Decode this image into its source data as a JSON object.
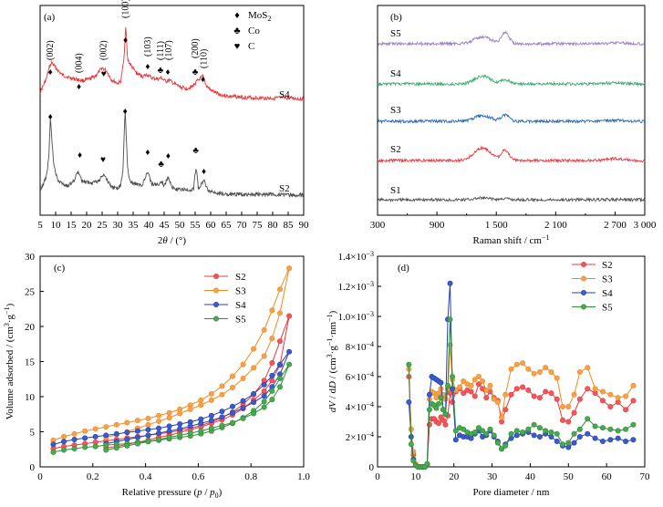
{
  "chart_data": [
    {
      "panel": "(a)",
      "type": "line",
      "xlabel": "2θ / (°)",
      "ylabel": "",
      "xlim": [
        5,
        90
      ],
      "xticks": [
        "5",
        "10",
        "15",
        "20",
        "25",
        "30",
        "35",
        "40",
        "45",
        "50",
        "55",
        "60",
        "65",
        "70",
        "75",
        "80",
        "85",
        "90"
      ],
      "series": [
        {
          "name": "S4",
          "color": "#e8383d",
          "x": [
            5,
            7,
            8,
            8.8,
            10,
            12,
            14,
            16,
            17.5,
            19,
            21,
            23,
            25,
            26.5,
            28,
            30,
            31,
            32,
            32.6,
            33.2,
            34,
            36,
            38,
            39.7,
            41,
            43,
            44.2,
            45.5,
            46.5,
            48,
            50,
            52,
            54,
            55.5,
            56.5,
            57.5,
            58.5,
            60,
            63,
            66,
            70,
            75,
            80,
            85,
            90
          ],
          "y": [
            0.18,
            0.33,
            0.47,
            0.52,
            0.46,
            0.38,
            0.35,
            0.33,
            0.32,
            0.31,
            0.33,
            0.37,
            0.46,
            0.42,
            0.32,
            0.28,
            0.3,
            0.55,
            0.95,
            0.56,
            0.5,
            0.4,
            0.36,
            0.38,
            0.34,
            0.33,
            0.34,
            0.3,
            0.32,
            0.28,
            0.24,
            0.22,
            0.24,
            0.3,
            0.33,
            0.36,
            0.26,
            0.2,
            0.15,
            0.13,
            0.12,
            0.11,
            0.11,
            0.11,
            0.1
          ]
        },
        {
          "name": "S2",
          "color": "#4d4d4d",
          "x": [
            5,
            6,
            7,
            7.8,
            8.3,
            8.8,
            9.5,
            10.5,
            12,
            14,
            16,
            17.2,
            18.5,
            20,
            22,
            24,
            25.5,
            27,
            28.5,
            30,
            31,
            31.7,
            32.4,
            33.2,
            34,
            36,
            38,
            39.7,
            41,
            42.5,
            43.5,
            44.2,
            45,
            46.3,
            47.5,
            49,
            51,
            53,
            54.5,
            55.3,
            56,
            57,
            57.8,
            59,
            61,
            63,
            66,
            70,
            75,
            80,
            85,
            90
          ],
          "y": [
            0.1,
            0.16,
            0.24,
            0.45,
            0.9,
            0.62,
            0.36,
            0.22,
            0.16,
            0.14,
            0.2,
            0.3,
            0.2,
            0.18,
            0.17,
            0.2,
            0.28,
            0.18,
            0.12,
            0.12,
            0.15,
            0.3,
            0.98,
            0.34,
            0.18,
            0.16,
            0.15,
            0.3,
            0.16,
            0.15,
            0.17,
            0.2,
            0.14,
            0.24,
            0.13,
            0.1,
            0.1,
            0.09,
            0.11,
            0.36,
            0.12,
            0.16,
            0.21,
            0.1,
            0.07,
            0.06,
            0.05,
            0.05,
            0.05,
            0.05,
            0.04,
            0.04
          ]
        }
      ],
      "labels": [
        "S4",
        "S2"
      ],
      "peaks_top": [
        "(002)",
        "(004)",
        "(002)",
        "(100)",
        "(103)",
        "(111)",
        "(107)",
        "(200)",
        "(110)"
      ],
      "legend": [
        {
          "glyph": "♦",
          "label": "MoS",
          "sub": "2"
        },
        {
          "glyph": "♣",
          "label": "Co",
          "sub": ""
        },
        {
          "glyph": "♥",
          "label": "C",
          "sub": ""
        }
      ]
    },
    {
      "panel": "(b)",
      "type": "line",
      "xlabel": "Raman shift / cm⁻¹",
      "ylabel": "",
      "xlim": [
        300,
        3000
      ],
      "xticks": [
        "300",
        "900",
        "1 500",
        "2 100",
        "2 700",
        "3 000"
      ],
      "xtick_values": [
        300,
        900,
        1500,
        2100,
        2700,
        3000
      ],
      "series": [
        {
          "name": "S5",
          "color": "#9b7fc7",
          "offset": 4,
          "d_amp": 0.55,
          "g_amp": 0.85
        },
        {
          "name": "S4",
          "color": "#3aaa6b",
          "offset": 3,
          "d_amp": 0.6,
          "g_amp": 0.35
        },
        {
          "name": "S3",
          "color": "#2b6bb0",
          "offset": 2,
          "d_amp": 0.45,
          "g_amp": 0.5
        },
        {
          "name": "S2",
          "color": "#e8383d",
          "offset": 1,
          "d_amp": 1.0,
          "g_amp": 0.8
        },
        {
          "name": "S1",
          "color": "#4d4d4d",
          "offset": 0,
          "d_amp": 0.12,
          "g_amp": 0.1
        }
      ]
    },
    {
      "panel": "(c)",
      "type": "line",
      "xlabel": "Relative pressure (p / p₀)",
      "ylabel": "Volume adsorbed / (cm³·g⁻¹)",
      "xlim": [
        0,
        1.0
      ],
      "ylim": [
        0,
        30
      ],
      "xticks": [
        "0",
        "0.2",
        "0.4",
        "0.6",
        "0.8",
        "1.0"
      ],
      "yticks": [
        "0",
        "5",
        "10",
        "15",
        "20",
        "25",
        "30"
      ],
      "series": [
        {
          "name": "S2",
          "color": "#e8383d",
          "fill": "#f0575c",
          "ads": [
            2.6,
            2.9,
            3.1,
            3.3,
            3.5,
            3.7,
            3.9,
            4.1,
            4.3,
            4.5,
            4.7,
            4.9,
            5.2,
            5.5,
            5.9,
            6.4,
            7.0,
            7.8,
            8.9,
            10.3,
            12.3,
            14.8,
            17.9,
            21.5
          ],
          "des": [
            21.5,
            14.5,
            12.3,
            10.8,
            9.5,
            8.3,
            7.4,
            6.7,
            6.2,
            5.7,
            5.3,
            4.9,
            4.5,
            4.2,
            3.8,
            3.5,
            3.2,
            2.9,
            2.7
          ]
        },
        {
          "name": "S3",
          "color": "#f08a24",
          "fill": "#f5a04a",
          "ads": [
            3.8,
            4.3,
            4.7,
            5.1,
            5.4,
            5.7,
            6.0,
            6.3,
            6.6,
            6.9,
            7.3,
            7.7,
            8.2,
            8.8,
            9.5,
            10.4,
            11.5,
            12.9,
            14.6,
            16.8,
            19.5,
            22.3,
            25.3,
            28.3
          ],
          "des": [
            28.3,
            21.9,
            18.3,
            15.8,
            14.1,
            12.6,
            11.3,
            10.3,
            9.5,
            8.8,
            8.2,
            7.6,
            7.0,
            6.5,
            6.0,
            5.5,
            5.0,
            4.6,
            4.2
          ]
        },
        {
          "name": "S4",
          "color": "#2742a8",
          "fill": "#3b5bcc",
          "ads": [
            3.2,
            3.6,
            3.9,
            4.1,
            4.3,
            4.5,
            4.7,
            4.9,
            5.1,
            5.3,
            5.5,
            5.8,
            6.1,
            6.4,
            6.8,
            7.3,
            7.9,
            8.6,
            9.4,
            10.4,
            11.7,
            13.0,
            14.6,
            16.4
          ],
          "des": [
            16.4,
            13.2,
            11.4,
            10.1,
            9.2,
            8.4,
            7.7,
            7.1,
            6.6,
            6.2,
            5.8,
            5.4,
            5.1,
            4.8,
            4.5,
            4.2,
            3.9,
            3.6,
            3.3
          ]
        },
        {
          "name": "S5",
          "color": "#2f8a3a",
          "fill": "#4aa84f",
          "ads": [
            2.1,
            2.4,
            2.6,
            2.8,
            2.9,
            3.1,
            3.2,
            3.3,
            3.5,
            3.6,
            3.8,
            4.0,
            4.2,
            4.4,
            4.7,
            5.1,
            5.6,
            6.2,
            7.0,
            8.0,
            9.3,
            10.8,
            12.6,
            14.6
          ],
          "des": [
            14.6,
            11.4,
            9.6,
            8.5,
            7.6,
            6.9,
            6.3,
            5.9,
            5.5,
            5.1,
            4.8,
            4.5,
            4.2,
            3.9,
            3.6,
            3.3,
            3.0,
            2.7,
            2.4
          ]
        }
      ],
      "ads_x": [
        0.05,
        0.09,
        0.13,
        0.17,
        0.21,
        0.25,
        0.29,
        0.33,
        0.37,
        0.41,
        0.45,
        0.49,
        0.53,
        0.57,
        0.61,
        0.65,
        0.69,
        0.73,
        0.77,
        0.81,
        0.85,
        0.88,
        0.91,
        0.945
      ],
      "des_x": [
        0.945,
        0.91,
        0.88,
        0.85,
        0.81,
        0.77,
        0.73,
        0.69,
        0.65,
        0.61,
        0.57,
        0.53,
        0.49,
        0.45,
        0.41,
        0.37,
        0.33,
        0.29,
        0.25
      ]
    },
    {
      "panel": "(d)",
      "type": "line",
      "xlabel": "Pore diameter / nm",
      "ylabel": "dV / dD / (cm³·g⁻¹·nm⁻¹)",
      "xlim": [
        0,
        70
      ],
      "ylim": [
        0,
        0.0014
      ],
      "xticks": [
        "0",
        "10",
        "20",
        "30",
        "40",
        "50",
        "60",
        "70"
      ],
      "yticks": [
        "0",
        "2×10⁻⁴",
        "4×10⁻⁴",
        "6×10⁻⁴",
        "8×10⁻⁴",
        "1.0×10⁻³",
        "1.2×10⁻³",
        "1.4×10⁻³"
      ],
      "x": [
        8.2,
        8.8,
        9.4,
        10,
        10.6,
        11.2,
        11.8,
        12.4,
        13,
        13.6,
        14.2,
        14.8,
        15.4,
        16,
        16.6,
        17.2,
        17.8,
        18.4,
        19,
        19.6,
        20.5,
        21.5,
        22.5,
        23.5,
        24.5,
        25.5,
        26.5,
        27.5,
        28.5,
        29.5,
        30.5,
        31.5,
        32.5,
        33.5,
        35,
        36.5,
        38,
        39.5,
        41,
        42.5,
        44,
        45.5,
        47,
        48.5,
        50,
        51.5,
        53,
        55,
        57,
        59,
        61,
        63,
        65,
        67
      ],
      "series": [
        {
          "name": "S2",
          "color": "#e8383d",
          "fill": "#f0575c",
          "y": [
            0.0006,
            0.00025,
            8e-05,
            1e-05,
            0,
            0,
            0,
            0,
            1e-05,
            0.00028,
            0.00032,
            0.00032,
            0.0003,
            0.00029,
            0.00033,
            0.00031,
            0.00028,
            0.00034,
            0.00049,
            0.00043,
            0.0005,
            0.00052,
            0.00049,
            0.00051,
            0.0005,
            0.00047,
            0.00055,
            0.00052,
            0.00046,
            0.0005,
            0.00046,
            0.00044,
            0.0003,
            0.00038,
            0.00048,
            0.00052,
            0.00053,
            0.00051,
            0.00047,
            0.00046,
            0.0005,
            0.00049,
            0.00045,
            0.00031,
            0.0003,
            0.00036,
            0.00045,
            0.00052,
            0.00049,
            0.00044,
            0.0004,
            0.00043,
            0.00038,
            0.00044
          ]
        },
        {
          "name": "S3",
          "color": "#f08a24",
          "fill": "#f5a04a",
          "y": [
            0.00065,
            0.00025,
            0.0001,
            2e-05,
            0,
            0,
            0,
            0,
            2e-05,
            0.00045,
            0.0005,
            0.00049,
            0.00046,
            0.00049,
            0.00052,
            0.00048,
            0.00045,
            0.00052,
            0.00081,
            0.00058,
            0.00051,
            0.00053,
            0.00057,
            0.00055,
            0.00054,
            0.00058,
            0.0006,
            0.00057,
            0.00051,
            0.00054,
            0.00045,
            0.00043,
            0.00033,
            0.00048,
            0.00065,
            0.00068,
            0.00069,
            0.00065,
            0.00062,
            0.00063,
            0.00066,
            0.00063,
            0.00059,
            0.0004,
            0.0004,
            0.00048,
            0.00063,
            0.00066,
            0.00052,
            0.0005,
            0.00048,
            0.00046,
            0.00047,
            0.00054
          ]
        },
        {
          "name": "S4",
          "color": "#2742a8",
          "fill": "#3b5bcc",
          "y": [
            0.00043,
            0.0002,
            5e-05,
            1e-05,
            0,
            0,
            0,
            0,
            2e-05,
            0.00048,
            0.0006,
            0.00059,
            0.00058,
            0.00057,
            0.00056,
            0.00038,
            0.00035,
            0.00098,
            0.00122,
            0.00052,
            0.00018,
            0.00021,
            0.0002,
            0.0002,
            0.00019,
            0.00022,
            0.00024,
            0.0002,
            0.00021,
            0.00024,
            0.0002,
            0.00017,
            0.00012,
            0.00015,
            0.00019,
            0.00021,
            0.00022,
            0.00023,
            0.00021,
            0.0002,
            0.00022,
            0.0002,
            0.00017,
            0.00014,
            0.00013,
            0.00016,
            0.0002,
            0.00022,
            0.00019,
            0.00017,
            0.00018,
            0.00019,
            0.00017,
            0.00018
          ]
        },
        {
          "name": "S5",
          "color": "#2f8a3a",
          "fill": "#4aa84f",
          "y": [
            0.00068,
            0.00015,
            4e-05,
            1e-05,
            0,
            0,
            0,
            0,
            2e-05,
            0.00038,
            0.00042,
            0.00041,
            0.00039,
            0.00042,
            0.00046,
            0.00038,
            0.00035,
            0.00054,
            0.00098,
            0.0006,
            0.00024,
            0.00026,
            0.00025,
            0.00023,
            0.00022,
            0.00023,
            0.00026,
            0.00024,
            0.00022,
            0.00025,
            0.00021,
            0.00016,
            0.00012,
            0.00014,
            0.00022,
            0.00024,
            0.00023,
            0.00025,
            0.00028,
            0.00026,
            0.00024,
            0.00023,
            0.00022,
            0.00015,
            0.00016,
            0.00022,
            0.00025,
            0.00032,
            0.00027,
            0.00026,
            0.00025,
            0.00024,
            0.00025,
            0.00028
          ]
        }
      ]
    }
  ]
}
